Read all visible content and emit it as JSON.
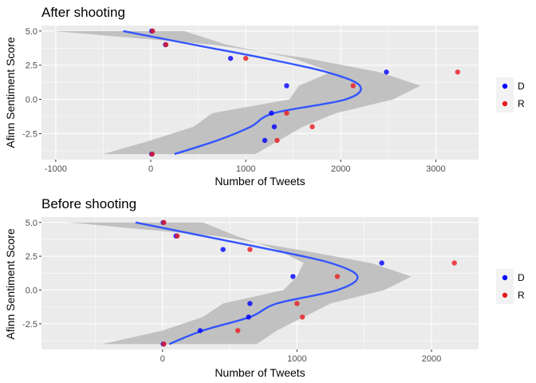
{
  "chart_data": [
    {
      "type": "scatter",
      "title": "After shooting",
      "xlabel": "Number of Tweets",
      "ylabel": "Afinn Sentiment Score",
      "xlim": [
        -1150,
        3450
      ],
      "ylim": [
        -4.4,
        5.4
      ],
      "xticks": [
        -1000,
        0,
        1000,
        2000,
        3000
      ],
      "xtick_labels": [
        "-1000",
        "0",
        "1000",
        "2000",
        "3000"
      ],
      "yticks": [
        -2.5,
        0,
        2.5,
        5
      ],
      "ytick_labels": [
        "-2.5",
        "0.0",
        "2.5",
        "5.0"
      ],
      "grid": true,
      "legend_position": "right",
      "series": [
        {
          "name": "D",
          "color": "#0000ff",
          "points": [
            [
              10,
              5
            ],
            [
              155,
              4
            ],
            [
              840,
              3
            ],
            [
              1430,
              1
            ],
            [
              2480,
              2
            ],
            [
              1270,
              -1
            ],
            [
              1300,
              -2
            ],
            [
              1200,
              -3
            ],
            [
              10,
              -4
            ]
          ]
        },
        {
          "name": "R",
          "color": "#e8191e",
          "points": [
            [
              20,
              5
            ],
            [
              160,
              4
            ],
            [
              1000,
              3
            ],
            [
              3230,
              2
            ],
            [
              2130,
              1
            ],
            [
              1430,
              -1
            ],
            [
              1700,
              -2
            ],
            [
              1330,
              -3
            ],
            [
              15,
              -4
            ]
          ]
        }
      ],
      "trend": {
        "color": "#3355ff",
        "band_color": "#bdbdbd",
        "points": [
          [
            -290,
            5
          ],
          [
            450,
            4
          ],
          [
            1200,
            3
          ],
          [
            1850,
            2
          ],
          [
            2200,
            1
          ],
          [
            2050,
            0
          ],
          [
            1300,
            -1
          ],
          [
            1050,
            -2
          ],
          [
            700,
            -3
          ],
          [
            250,
            -4
          ]
        ],
        "band_upper": [
          [
            -1030,
            5
          ],
          [
            650,
            4
          ],
          [
            1650,
            3
          ],
          [
            2400,
            2
          ],
          [
            2840,
            1
          ],
          [
            2550,
            0
          ],
          [
            1950,
            -1
          ],
          [
            1600,
            -2
          ],
          [
            1350,
            -3
          ],
          [
            1100,
            -4
          ]
        ],
        "band_lower": [
          [
            350,
            5
          ],
          [
            800,
            4
          ],
          [
            1500,
            3
          ],
          [
            1900,
            2
          ],
          [
            1560,
            1
          ],
          [
            1460,
            0
          ],
          [
            650,
            -1
          ],
          [
            450,
            -2
          ],
          [
            0,
            -3
          ],
          [
            -500,
            -4
          ]
        ]
      }
    },
    {
      "type": "scatter",
      "title": "Before shooting",
      "xlabel": "Number of Tweets",
      "ylabel": "Afinn Sentiment Score",
      "xlim": [
        -900,
        2350
      ],
      "ylim": [
        -4.4,
        5.4
      ],
      "xticks": [
        0,
        1000,
        2000
      ],
      "xtick_labels": [
        "0",
        "1000",
        "2000"
      ],
      "yticks": [
        -2.5,
        0,
        2.5,
        5
      ],
      "ytick_labels": [
        "-2.5",
        "0.0",
        "2.5",
        "5.0"
      ],
      "grid": true,
      "legend_position": "right",
      "series": [
        {
          "name": "D",
          "color": "#0000ff",
          "points": [
            [
              5,
              5
            ],
            [
              100,
              4
            ],
            [
              450,
              3
            ],
            [
              970,
              1
            ],
            [
              1630,
              2
            ],
            [
              650,
              -1
            ],
            [
              640,
              -2
            ],
            [
              280,
              -3
            ],
            [
              5,
              -4
            ]
          ]
        },
        {
          "name": "R",
          "color": "#e8191e",
          "points": [
            [
              10,
              5
            ],
            [
              110,
              4
            ],
            [
              650,
              3
            ],
            [
              2170,
              2
            ],
            [
              1300,
              1
            ],
            [
              1000,
              -1
            ],
            [
              1040,
              -2
            ],
            [
              560,
              -3
            ],
            [
              10,
              -4
            ]
          ]
        }
      ],
      "trend": {
        "color": "#3355ff",
        "band_color": "#bdbdbd",
        "points": [
          [
            -200,
            5
          ],
          [
            300,
            4
          ],
          [
            800,
            3
          ],
          [
            1250,
            2
          ],
          [
            1450,
            1
          ],
          [
            1300,
            0
          ],
          [
            850,
            -1
          ],
          [
            650,
            -2
          ],
          [
            300,
            -3
          ],
          [
            50,
            -4
          ]
        ],
        "band_upper": [
          [
            -700,
            5
          ],
          [
            400,
            4
          ],
          [
            1000,
            3
          ],
          [
            1550,
            2
          ],
          [
            1850,
            1
          ],
          [
            1650,
            0
          ],
          [
            1250,
            -1
          ],
          [
            1050,
            -2
          ],
          [
            850,
            -3
          ],
          [
            700,
            -4
          ]
        ],
        "band_lower": [
          [
            300,
            5
          ],
          [
            550,
            4
          ],
          [
            850,
            3
          ],
          [
            1050,
            2
          ],
          [
            1000,
            1
          ],
          [
            900,
            0
          ],
          [
            450,
            -1
          ],
          [
            300,
            -2
          ],
          [
            0,
            -3
          ],
          [
            -450,
            -4
          ]
        ]
      }
    }
  ]
}
